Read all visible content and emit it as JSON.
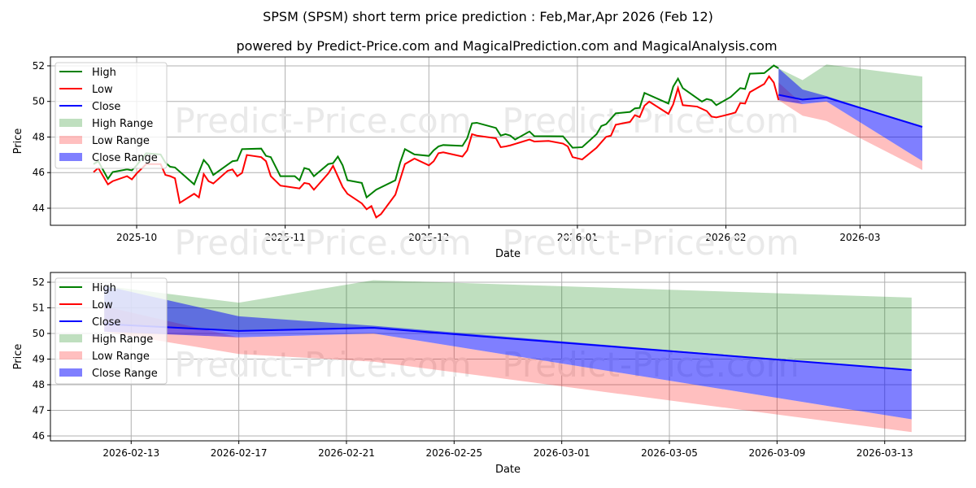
{
  "title": "SPSM (SPSM) short term price prediction : Feb,Mar,Apr 2026 (Feb 12)",
  "subtitle": "powered by Predict-Price.com and MagicalPrediction.com and MagicalAnalysis.com",
  "watermark": "Predict-Price.com",
  "colors": {
    "high": "#008000",
    "low": "#ff0000",
    "close": "#0000ff",
    "high_range": "rgba(0,128,0,0.25)",
    "low_range": "rgba(255,0,0,0.25)",
    "close_range": "rgba(0,0,255,0.5)"
  },
  "legend": [
    "High",
    "Low",
    "Close",
    "High Range",
    "Low Range",
    "Close Range"
  ],
  "chart_data": [
    {
      "type": "line",
      "title": "top-panel",
      "xlabel": "Date",
      "ylabel": "Price",
      "xlim": [
        "2025-09-13",
        "2026-03-23"
      ],
      "ylim": [
        43.04,
        52.5
      ],
      "yticks": [
        44,
        46,
        48,
        50,
        52
      ],
      "xticks": [
        {
          "d": "2025-10-01",
          "label": "2025-10"
        },
        {
          "d": "2025-11-01",
          "label": "2025-11"
        },
        {
          "d": "2025-12-01",
          "label": "2025-12"
        },
        {
          "d": "2026-01-01",
          "label": "2026-01"
        },
        {
          "d": "2026-02-01",
          "label": "2026-02"
        },
        {
          "d": "2026-03-01",
          "label": "2026-03"
        }
      ],
      "grid": true,
      "legend_position": "top-left",
      "high": [
        [
          "2025-09-22",
          46.48
        ],
        [
          "2025-09-23",
          46.64
        ],
        [
          "2025-09-25",
          45.65
        ],
        [
          "2025-09-26",
          46.03
        ],
        [
          "2025-09-29",
          46.18
        ],
        [
          "2025-09-30",
          46.13
        ],
        [
          "2025-10-01",
          46.41
        ],
        [
          "2025-10-03",
          47.09
        ],
        [
          "2025-10-06",
          47.02
        ],
        [
          "2025-10-07",
          46.56
        ],
        [
          "2025-10-08",
          46.33
        ],
        [
          "2025-10-09",
          46.29
        ],
        [
          "2025-10-13",
          45.34
        ],
        [
          "2025-10-15",
          46.71
        ],
        [
          "2025-10-16",
          46.41
        ],
        [
          "2025-10-17",
          45.87
        ],
        [
          "2025-10-21",
          46.64
        ],
        [
          "2025-10-22",
          46.68
        ],
        [
          "2025-10-23",
          47.32
        ],
        [
          "2025-10-27",
          47.35
        ],
        [
          "2025-10-28",
          46.94
        ],
        [
          "2025-10-29",
          46.87
        ],
        [
          "2025-10-31",
          45.8
        ],
        [
          "2025-11-03",
          45.8
        ],
        [
          "2025-11-04",
          45.57
        ],
        [
          "2025-11-05",
          46.26
        ],
        [
          "2025-11-06",
          46.18
        ],
        [
          "2025-11-07",
          45.8
        ],
        [
          "2025-11-10",
          46.48
        ],
        [
          "2025-11-11",
          46.53
        ],
        [
          "2025-11-12",
          46.9
        ],
        [
          "2025-11-13",
          46.41
        ],
        [
          "2025-11-14",
          45.57
        ],
        [
          "2025-11-17",
          45.42
        ],
        [
          "2025-11-18",
          44.61
        ],
        [
          "2025-11-20",
          45.04
        ],
        [
          "2025-11-24",
          45.57
        ],
        [
          "2025-11-25",
          46.56
        ],
        [
          "2025-11-26",
          47.32
        ],
        [
          "2025-11-28",
          47.02
        ],
        [
          "2025-12-01",
          46.94
        ],
        [
          "2025-12-02",
          47.25
        ],
        [
          "2025-12-03",
          47.47
        ],
        [
          "2025-12-04",
          47.55
        ],
        [
          "2025-12-08",
          47.5
        ],
        [
          "2025-12-09",
          47.93
        ],
        [
          "2025-12-10",
          48.77
        ],
        [
          "2025-12-11",
          48.8
        ],
        [
          "2025-12-15",
          48.51
        ],
        [
          "2025-12-16",
          48.08
        ],
        [
          "2025-12-17",
          48.16
        ],
        [
          "2025-12-18",
          48.08
        ],
        [
          "2025-12-19",
          47.86
        ],
        [
          "2025-12-22",
          48.31
        ],
        [
          "2025-12-23",
          48.05
        ],
        [
          "2025-12-29",
          48.04
        ],
        [
          "2025-12-31",
          47.4
        ],
        [
          "2026-01-02",
          47.43
        ],
        [
          "2026-01-05",
          48.16
        ],
        [
          "2026-01-06",
          48.62
        ],
        [
          "2026-01-07",
          48.72
        ],
        [
          "2026-01-09",
          49.33
        ],
        [
          "2026-01-12",
          49.41
        ],
        [
          "2026-01-13",
          49.61
        ],
        [
          "2026-01-14",
          49.64
        ],
        [
          "2026-01-15",
          50.48
        ],
        [
          "2026-01-20",
          49.88
        ],
        [
          "2026-01-21",
          50.83
        ],
        [
          "2026-01-22",
          51.28
        ],
        [
          "2026-01-23",
          50.75
        ],
        [
          "2026-01-27",
          49.99
        ],
        [
          "2026-01-28",
          50.14
        ],
        [
          "2026-01-29",
          50.07
        ],
        [
          "2026-01-30",
          49.79
        ],
        [
          "2026-02-02",
          50.25
        ],
        [
          "2026-02-04",
          50.75
        ],
        [
          "2026-02-05",
          50.7
        ],
        [
          "2026-02-06",
          51.56
        ],
        [
          "2026-02-09",
          51.59
        ],
        [
          "2026-02-11",
          52.02
        ],
        [
          "2026-02-12",
          51.86
        ]
      ],
      "low": [
        [
          "2025-09-22",
          46.03
        ],
        [
          "2025-09-23",
          46.26
        ],
        [
          "2025-09-25",
          45.34
        ],
        [
          "2025-09-26",
          45.52
        ],
        [
          "2025-09-29",
          45.8
        ],
        [
          "2025-09-30",
          45.62
        ],
        [
          "2025-10-01",
          45.95
        ],
        [
          "2025-10-03",
          46.48
        ],
        [
          "2025-10-06",
          46.48
        ],
        [
          "2025-10-07",
          45.87
        ],
        [
          "2025-10-08",
          45.8
        ],
        [
          "2025-10-09",
          45.68
        ],
        [
          "2025-10-10",
          44.3
        ],
        [
          "2025-10-13",
          44.81
        ],
        [
          "2025-10-14",
          44.61
        ],
        [
          "2025-10-15",
          45.92
        ],
        [
          "2025-10-16",
          45.52
        ],
        [
          "2025-10-17",
          45.39
        ],
        [
          "2025-10-20",
          46.1
        ],
        [
          "2025-10-21",
          46.18
        ],
        [
          "2025-10-22",
          45.8
        ],
        [
          "2025-10-23",
          45.98
        ],
        [
          "2025-10-24",
          46.99
        ],
        [
          "2025-10-27",
          46.87
        ],
        [
          "2025-10-28",
          46.64
        ],
        [
          "2025-10-29",
          45.8
        ],
        [
          "2025-10-31",
          45.27
        ],
        [
          "2025-11-04",
          45.11
        ],
        [
          "2025-11-05",
          45.42
        ],
        [
          "2025-11-06",
          45.37
        ],
        [
          "2025-11-07",
          45.04
        ],
        [
          "2025-11-10",
          45.95
        ],
        [
          "2025-11-11",
          46.38
        ],
        [
          "2025-11-13",
          45.19
        ],
        [
          "2025-11-14",
          44.81
        ],
        [
          "2025-11-17",
          44.27
        ],
        [
          "2025-11-18",
          43.94
        ],
        [
          "2025-11-19",
          44.12
        ],
        [
          "2025-11-20",
          43.48
        ],
        [
          "2025-11-21",
          43.67
        ],
        [
          "2025-11-24",
          44.76
        ],
        [
          "2025-11-26",
          46.48
        ],
        [
          "2025-11-28",
          46.79
        ],
        [
          "2025-12-01",
          46.41
        ],
        [
          "2025-12-02",
          46.64
        ],
        [
          "2025-12-03",
          47.09
        ],
        [
          "2025-12-04",
          47.14
        ],
        [
          "2025-12-08",
          46.9
        ],
        [
          "2025-12-09",
          47.25
        ],
        [
          "2025-12-10",
          48.16
        ],
        [
          "2025-12-11",
          48.08
        ],
        [
          "2025-12-15",
          47.93
        ],
        [
          "2025-12-16",
          47.43
        ],
        [
          "2025-12-17",
          47.47
        ],
        [
          "2025-12-18",
          47.53
        ],
        [
          "2025-12-22",
          47.86
        ],
        [
          "2025-12-23",
          47.75
        ],
        [
          "2025-12-26",
          47.78
        ],
        [
          "2025-12-29",
          47.63
        ],
        [
          "2025-12-30",
          47.47
        ],
        [
          "2025-12-31",
          46.87
        ],
        [
          "2026-01-02",
          46.74
        ],
        [
          "2026-01-05",
          47.4
        ],
        [
          "2026-01-07",
          48.01
        ],
        [
          "2026-01-08",
          48.08
        ],
        [
          "2026-01-09",
          48.69
        ],
        [
          "2026-01-12",
          48.85
        ],
        [
          "2026-01-13",
          49.23
        ],
        [
          "2026-01-14",
          49.12
        ],
        [
          "2026-01-15",
          49.76
        ],
        [
          "2026-01-16",
          49.99
        ],
        [
          "2026-01-20",
          49.3
        ],
        [
          "2026-01-21",
          49.84
        ],
        [
          "2026-01-22",
          50.75
        ],
        [
          "2026-01-23",
          49.79
        ],
        [
          "2026-01-26",
          49.71
        ],
        [
          "2026-01-28",
          49.46
        ],
        [
          "2026-01-29",
          49.15
        ],
        [
          "2026-01-30",
          49.1
        ],
        [
          "2026-02-02",
          49.3
        ],
        [
          "2026-02-03",
          49.38
        ],
        [
          "2026-02-04",
          49.91
        ],
        [
          "2026-02-05",
          49.88
        ],
        [
          "2026-02-06",
          50.52
        ],
        [
          "2026-02-09",
          50.98
        ],
        [
          "2026-02-10",
          51.41
        ],
        [
          "2026-02-11",
          51.06
        ],
        [
          "2026-02-12",
          50.07
        ]
      ]
    },
    {
      "type": "line",
      "title": "bottom-panel",
      "xlabel": "Date",
      "ylabel": "Price",
      "xlim": [
        "2026-02-10",
        "2026-03-16"
      ],
      "ylim": [
        45.81,
        52.38
      ],
      "yticks": [
        46,
        47,
        48,
        49,
        50,
        51,
        52
      ],
      "xticks": [
        {
          "d": "2026-02-13",
          "label": "2026-02-13"
        },
        {
          "d": "2026-02-17",
          "label": "2026-02-17"
        },
        {
          "d": "2026-02-21",
          "label": "2026-02-21"
        },
        {
          "d": "2026-02-25",
          "label": "2026-02-25"
        },
        {
          "d": "2026-03-01",
          "label": "2026-03-01"
        },
        {
          "d": "2026-03-05",
          "label": "2026-03-05"
        },
        {
          "d": "2026-03-09",
          "label": "2026-03-09"
        },
        {
          "d": "2026-03-13",
          "label": "2026-03-13"
        }
      ],
      "grid": true,
      "legend_position": "top-left"
    }
  ],
  "forecast": {
    "dates": [
      "2026-02-12",
      "2026-02-17",
      "2026-02-22",
      "2026-03-14"
    ],
    "close": [
      50.37,
      50.1,
      50.22,
      48.57
    ],
    "high_range": {
      "upper": [
        51.86,
        51.2,
        52.08,
        51.4
      ],
      "lower": [
        50.37,
        50.1,
        50.22,
        48.57
      ]
    },
    "close_range": {
      "upper": [
        51.86,
        50.67,
        50.3,
        48.57
      ],
      "lower": [
        50.07,
        49.85,
        50.0,
        46.65
      ]
    },
    "low_range": {
      "upper": [
        51.06,
        49.85,
        50.0,
        46.65
      ],
      "lower": [
        50.07,
        49.2,
        48.9,
        46.15
      ]
    }
  }
}
